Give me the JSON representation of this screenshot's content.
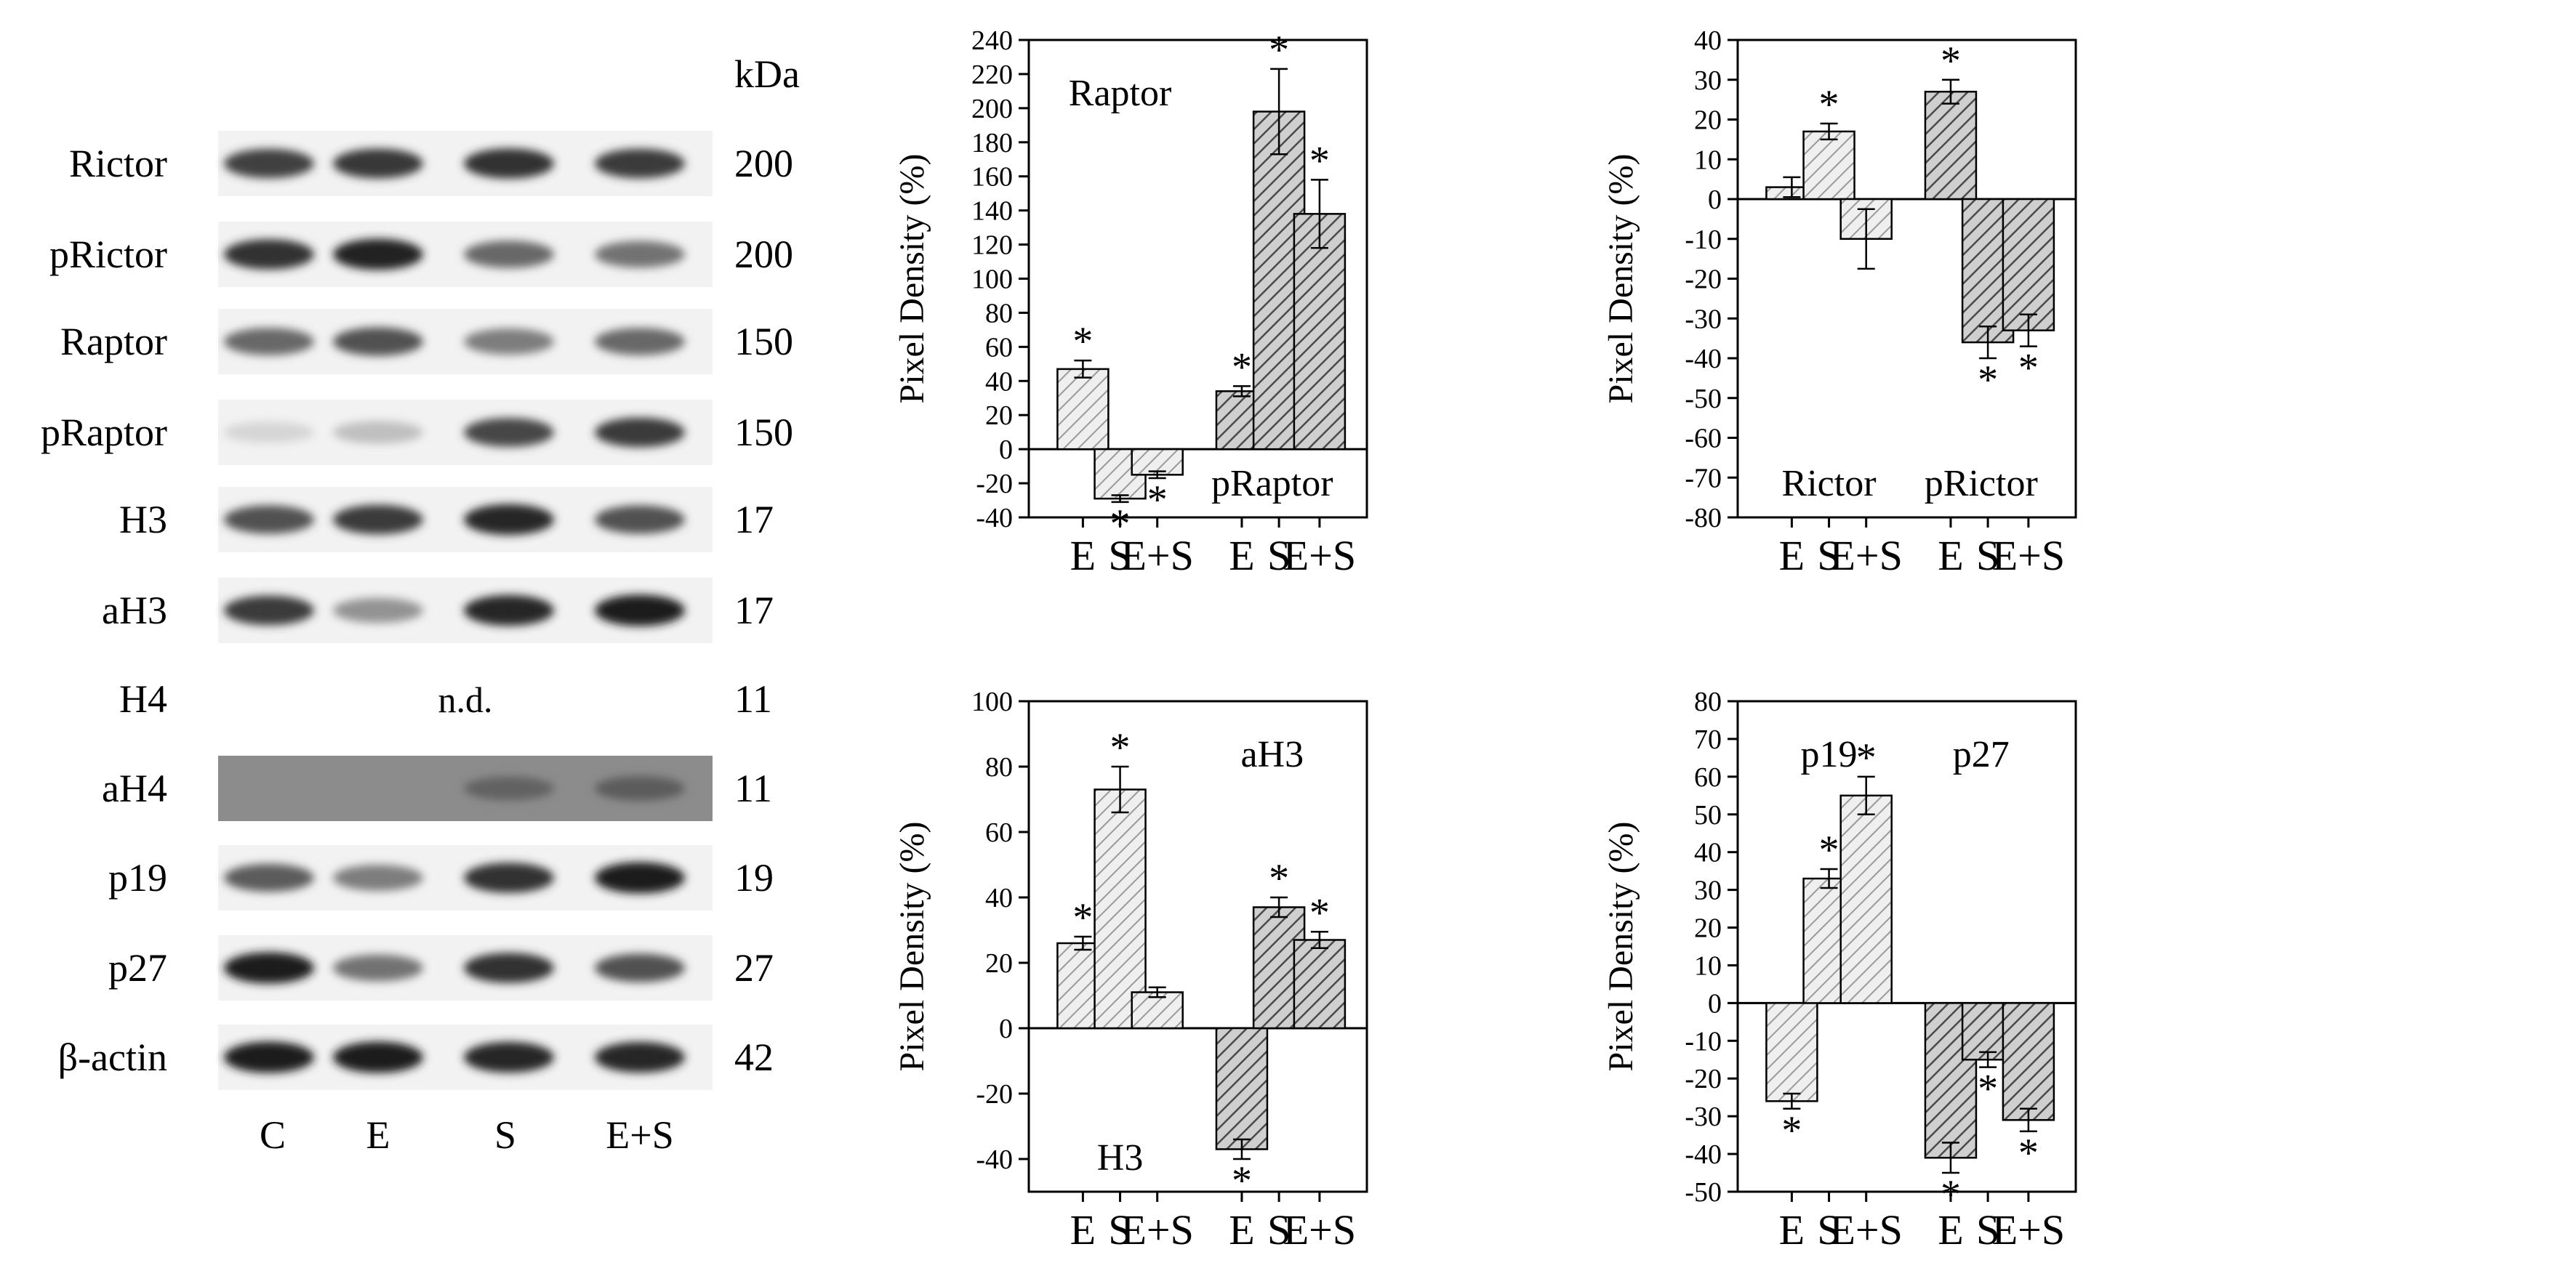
{
  "blot": {
    "kda_header": "kDa",
    "rows": [
      {
        "label": "Rictor",
        "kda": "200",
        "nd": false
      },
      {
        "label": "pRictor",
        "kda": "200",
        "nd": false
      },
      {
        "label": "Raptor",
        "kda": "150",
        "nd": false
      },
      {
        "label": "pRaptor",
        "kda": "150",
        "nd": false
      },
      {
        "label": "H3",
        "kda": "17",
        "nd": false
      },
      {
        "label": "aH3",
        "kda": "17",
        "nd": false
      },
      {
        "label": "H4",
        "kda": "11",
        "nd": true,
        "nd_text": "n.d."
      },
      {
        "label": "aH4",
        "kda": "11",
        "nd": false
      },
      {
        "label": "p19",
        "kda": "19",
        "nd": false
      },
      {
        "label": "p27",
        "kda": "27",
        "nd": false
      },
      {
        "label": "β-actin",
        "kda": "42",
        "nd": false
      }
    ],
    "lanes": [
      "C",
      "E",
      "S",
      "E+S"
    ],
    "band_intensity": [
      [
        0.78,
        0.82,
        0.85,
        0.8
      ],
      [
        0.85,
        0.92,
        0.6,
        0.55
      ],
      [
        0.6,
        0.7,
        0.5,
        0.6
      ],
      [
        0.1,
        0.2,
        0.75,
        0.8
      ],
      [
        0.7,
        0.8,
        0.9,
        0.7
      ],
      [
        0.8,
        0.4,
        0.9,
        0.95
      ],
      [
        0,
        0,
        0,
        0
      ],
      [
        0,
        0,
        0.3,
        0.35
      ],
      [
        0.65,
        0.5,
        0.85,
        0.95
      ],
      [
        0.95,
        0.55,
        0.85,
        0.7
      ],
      [
        0.95,
        0.95,
        0.9,
        0.9
      ]
    ]
  },
  "chart_data": [
    {
      "type": "bar",
      "ylabel": "Pixel Density (%)",
      "ylim": [
        -40,
        240
      ],
      "yticks": [
        -40,
        -20,
        0,
        20,
        40,
        60,
        80,
        100,
        120,
        140,
        160,
        180,
        200,
        220,
        240
      ],
      "categories": [
        "E",
        "S",
        "E+S",
        "E",
        "S",
        "E+S"
      ],
      "groups": [
        {
          "name": "Raptor",
          "label_position": "top-left",
          "fill": "light",
          "values": [
            47,
            -29,
            -15
          ],
          "errors": [
            5,
            2,
            2
          ],
          "significant": [
            true,
            true,
            true
          ]
        },
        {
          "name": "pRaptor",
          "label_position": "bottom-right",
          "fill": "dark",
          "values": [
            34,
            198,
            138
          ],
          "errors": [
            3,
            25,
            20
          ],
          "significant": [
            true,
            true,
            true
          ]
        }
      ]
    },
    {
      "type": "bar",
      "ylabel": "Pixel Density (%)",
      "ylim": [
        -80,
        40
      ],
      "yticks": [
        -80,
        -70,
        -60,
        -50,
        -40,
        -30,
        -20,
        -10,
        0,
        10,
        20,
        30,
        40
      ],
      "categories": [
        "E",
        "S",
        "E+S",
        "E",
        "S",
        "E+S"
      ],
      "groups": [
        {
          "name": "Rictor",
          "label_position": "bottom-left",
          "fill": "light",
          "values": [
            3,
            17,
            -10
          ],
          "errors": [
            2.5,
            2,
            7.5
          ],
          "significant": [
            false,
            true,
            false
          ]
        },
        {
          "name": "pRictor",
          "label_position": "bottom-right",
          "fill": "dark",
          "values": [
            27,
            -36,
            -33
          ],
          "errors": [
            3,
            4,
            4
          ],
          "significant": [
            true,
            true,
            true
          ]
        }
      ]
    },
    {
      "type": "bar",
      "ylabel": "Pixel Density (%)",
      "ylim": [
        -50,
        100
      ],
      "yticks": [
        -40,
        -20,
        0,
        20,
        40,
        60,
        80,
        100
      ],
      "categories": [
        "E",
        "S",
        "E+S",
        "E",
        "S",
        "E+S"
      ],
      "groups": [
        {
          "name": "H3",
          "label_position": "bottom-left",
          "fill": "light",
          "values": [
            26,
            73,
            11
          ],
          "errors": [
            2,
            7,
            1.5
          ],
          "significant": [
            true,
            true,
            false
          ]
        },
        {
          "name": "aH3",
          "label_position": "top-right",
          "fill": "dark",
          "values": [
            -37,
            37,
            27
          ],
          "errors": [
            3,
            3,
            2.5
          ],
          "significant": [
            true,
            true,
            true
          ]
        }
      ]
    },
    {
      "type": "bar",
      "ylabel": "Pixel Density (%)",
      "ylim": [
        -50,
        80
      ],
      "yticks": [
        -50,
        -40,
        -30,
        -20,
        -10,
        0,
        10,
        20,
        30,
        40,
        50,
        60,
        70,
        80
      ],
      "categories": [
        "E",
        "S",
        "E+S",
        "E",
        "S",
        "E+S"
      ],
      "groups": [
        {
          "name": "p19",
          "label_position": "top-left",
          "fill": "light",
          "values": [
            -26,
            33,
            55
          ],
          "errors": [
            2,
            2.5,
            5
          ],
          "significant": [
            true,
            true,
            true
          ]
        },
        {
          "name": "p27",
          "label_position": "top-right",
          "fill": "dark",
          "values": [
            -41,
            -15,
            -31
          ],
          "errors": [
            4,
            2,
            3
          ],
          "significant": [
            true,
            true,
            true
          ]
        }
      ]
    }
  ],
  "colors": {
    "light_hatch": "#9a9a9a",
    "dark_hatch": "#4a4a4a",
    "light_bg": "#efefef",
    "dark_bg": "#cfcfcf",
    "axis": "#000000"
  }
}
